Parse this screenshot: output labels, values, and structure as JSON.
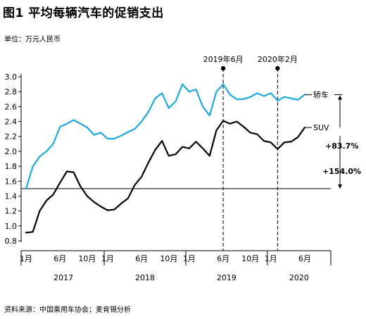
{
  "title": "图1 平均每辆汽车的促销支出",
  "unit_label": "单位：万元人民币",
  "source": "资料来源：中国乘用车协会；麦肯锡分析",
  "colors": {
    "sedan": "#1ea7e1",
    "suv": "#000000",
    "axis": "#000000",
    "grid": "#000000"
  },
  "chart_data": {
    "type": "line",
    "title": "平均每辆汽车的促销支出",
    "ylabel": "万元人民币",
    "ylim": [
      0.8,
      3.0
    ],
    "yticks": [
      0.8,
      1.0,
      1.2,
      1.4,
      1.6,
      1.8,
      2.0,
      2.2,
      2.4,
      2.6,
      2.8,
      3.0
    ],
    "x_tick_labels": [
      {
        "month": 0,
        "label": "1月"
      },
      {
        "month": 5,
        "label": "6月"
      },
      {
        "month": 9,
        "label": "10月"
      },
      {
        "month": 12,
        "label": "1月"
      },
      {
        "month": 17,
        "label": "6月"
      },
      {
        "month": 21,
        "label": "10月"
      },
      {
        "month": 24,
        "label": "1月"
      },
      {
        "month": 29,
        "label": "6月"
      },
      {
        "month": 33,
        "label": "10月"
      },
      {
        "month": 36,
        "label": "1月"
      },
      {
        "month": 41,
        "label": "6月"
      }
    ],
    "years": [
      {
        "label": "2017",
        "start": 0,
        "end": 11
      },
      {
        "label": "2018",
        "start": 12,
        "end": 23
      },
      {
        "label": "2019",
        "start": 24,
        "end": 35
      },
      {
        "label": "2020",
        "start": 36,
        "end": 41
      }
    ],
    "series": [
      {
        "name": "轿车",
        "values": [
          1.5,
          1.8,
          1.93,
          2.0,
          2.1,
          2.33,
          2.37,
          2.42,
          2.37,
          2.32,
          2.22,
          2.25,
          2.17,
          2.17,
          2.21,
          2.26,
          2.3,
          2.4,
          2.53,
          2.71,
          2.78,
          2.58,
          2.67,
          2.9,
          2.8,
          2.83,
          2.6,
          2.48,
          2.8,
          2.9,
          2.76,
          2.7,
          2.7,
          2.73,
          2.78,
          2.74,
          2.78,
          2.68,
          2.73,
          2.71,
          2.69,
          2.76
        ]
      },
      {
        "name": "SUV",
        "values": [
          0.91,
          0.92,
          1.2,
          1.34,
          1.42,
          1.58,
          1.73,
          1.72,
          1.53,
          1.4,
          1.32,
          1.26,
          1.21,
          1.22,
          1.3,
          1.37,
          1.55,
          1.66,
          1.85,
          2.02,
          2.14,
          1.94,
          1.96,
          2.06,
          2.04,
          2.13,
          2.04,
          1.94,
          2.28,
          2.41,
          2.37,
          2.4,
          2.33,
          2.25,
          2.23,
          2.14,
          2.12,
          2.03,
          2.12,
          2.13,
          2.19,
          2.32
        ]
      }
    ],
    "reference_line": 1.5,
    "markers": [
      {
        "label": "2019年6月",
        "month": 29
      },
      {
        "label": "2020年2月",
        "month": 37
      }
    ],
    "annotations": [
      {
        "label": "+83.7%",
        "from": 2.32,
        "to": 2.76
      },
      {
        "label": "+154.0%",
        "from": 1.5,
        "to": 2.76
      }
    ]
  }
}
